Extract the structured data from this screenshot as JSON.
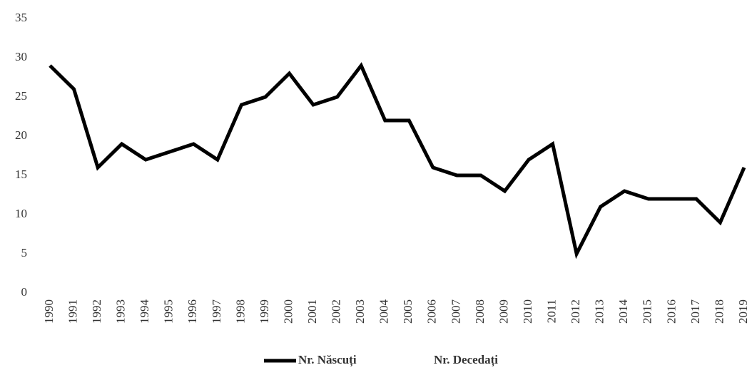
{
  "chart_data": {
    "type": "line",
    "categories": [
      "1990",
      "1991",
      "1992",
      "1993",
      "1994",
      "1995",
      "1996",
      "1997",
      "1998",
      "1999",
      "2000",
      "2001",
      "2002",
      "2003",
      "2004",
      "2005",
      "2006",
      "2007",
      "2008",
      "2009",
      "2010",
      "2011",
      "2012",
      "2013",
      "2014",
      "2015",
      "2016",
      "2017",
      "2018",
      "2019"
    ],
    "series": [
      {
        "name": "Nr. Născuți",
        "color": "#000000",
        "values": [
          29,
          26,
          16,
          19,
          17,
          18,
          19,
          17,
          24,
          25,
          28,
          24,
          25,
          29,
          22,
          22,
          16,
          15,
          15,
          13,
          17,
          19,
          5,
          11,
          13,
          12,
          12,
          12,
          9,
          16
        ]
      },
      {
        "name": "Nr. Decedați",
        "color": "#ffffff",
        "values": [
          null,
          null,
          null,
          null,
          null,
          null,
          null,
          null,
          null,
          null,
          null,
          null,
          null,
          null,
          null,
          null,
          null,
          null,
          null,
          null,
          null,
          null,
          null,
          null,
          null,
          null,
          null,
          null,
          null,
          null
        ]
      }
    ],
    "ylim": [
      0,
      35
    ],
    "yticks": [
      0,
      5,
      10,
      15,
      20,
      25,
      30,
      35
    ],
    "grid": false,
    "legend": "bottom"
  }
}
